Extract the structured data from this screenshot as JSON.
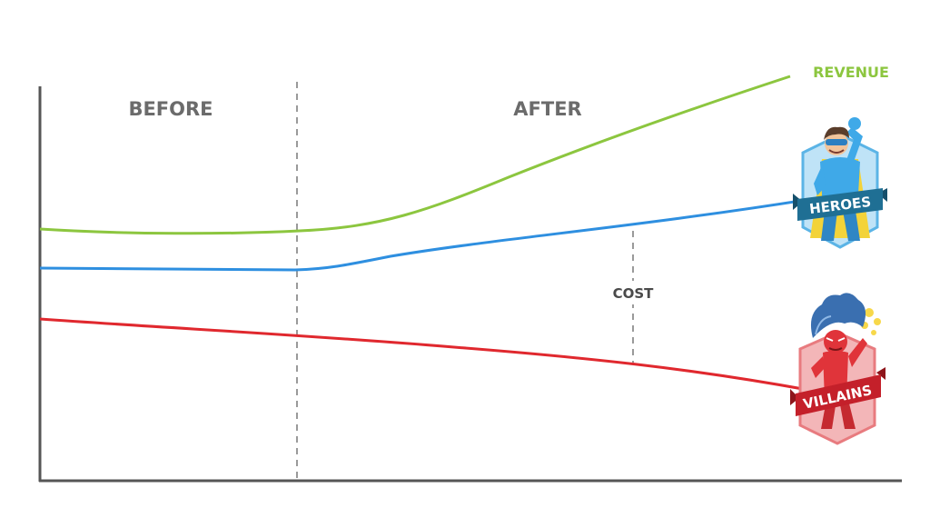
{
  "labels": {
    "before": "BEFORE",
    "after": "AFTER",
    "revenue": "REVENUE",
    "heroes": "HEROES",
    "villains": "VILLAINS",
    "cost": "COST"
  },
  "colors": {
    "revenue": "#8cc63f",
    "heroes": "#2e8fe0",
    "villains": "#e0282e",
    "axis": "#555555",
    "divider": "#9a9a9a",
    "phase_text": "#6b6b6b",
    "hero_banner": "#1f6f94",
    "villain_banner": "#c4202a"
  },
  "icons": {
    "hero": "superhero-mascot-icon",
    "villain": "villain-mascot-icon"
  }
}
